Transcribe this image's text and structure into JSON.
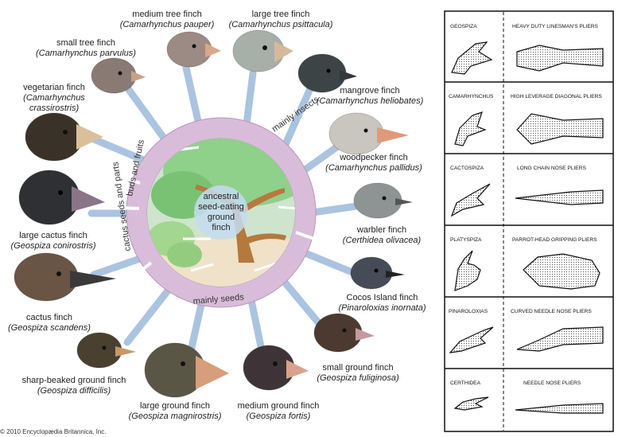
{
  "groups": {
    "insects": "mainly insects",
    "buds": "buds and fruits",
    "cactus": "cactus seeds and parts",
    "seeds": "mainly seeds"
  },
  "center": [
    "ancestral",
    "seed-eating",
    "ground",
    "finch"
  ],
  "finches": [
    {
      "name": "medium tree finch",
      "sci": "(Camarhynchus pauper)",
      "color": "#9c8a84"
    },
    {
      "name": "large tree finch",
      "sci": "(Camarhynchus psittacula)",
      "color": "#a6b0a8"
    },
    {
      "name": "small tree finch",
      "sci": "(Camarhynchus parvulus)",
      "color": "#8a7a74"
    },
    {
      "name": "mangrove finch",
      "sci": "(Camarhynchus heliobates)",
      "color": "#3c4446"
    },
    {
      "name": "vegetarian finch",
      "sci": "(Camarhynchus crassirostris)",
      "color": "#3a3228"
    },
    {
      "name": "woodpecker finch",
      "sci": "(Camarhynchus pallidus)",
      "color": "#c8c6be"
    },
    {
      "name": "warbler finch",
      "sci": "(Certhidea olivacea)",
      "color": "#8e9494"
    },
    {
      "name": "large cactus finch",
      "sci": "(Geospiza conirostris)",
      "color": "#2e3034"
    },
    {
      "name": "Cocos Island finch",
      "sci": "(Pinaroloxias inornata)",
      "color": "#454c58"
    },
    {
      "name": "cactus finch",
      "sci": "(Geospiza scandens)",
      "color": "#6a5444"
    },
    {
      "name": "small ground finch",
      "sci": "(Geospiza fuliginosa)",
      "color": "#4c3a30"
    },
    {
      "name": "sharp-beaked ground finch",
      "sci": "(Geospiza difficilis)",
      "color": "#4a4030"
    },
    {
      "name": "large ground finch",
      "sci": "(Geospiza magnirostris)",
      "color": "#5a5646"
    },
    {
      "name": "medium ground finch",
      "sci": "(Geospiza fortis)",
      "color": "#3e3438"
    }
  ],
  "copyright": "© 2010 Encyclopædia Britannica, Inc.",
  "pliers_table": [
    {
      "genus": "GEOSPIZA",
      "tool": "HEAVY DUTY LINESMAN'S PLIERS"
    },
    {
      "genus": "CAMARHYNCHUS",
      "tool": "HIGH LEVERAGE DIAGONAL PLIERS"
    },
    {
      "genus": "CACTOSPIZA",
      "tool": "LONG CHAIN NOSE PLIERS"
    },
    {
      "genus": "PLATYSPIZA",
      "tool": "PARROT-HEAD GRIPPING PLIERS"
    },
    {
      "genus": "PINAROLOXIAS",
      "tool": "CURVED NEEDLE NOSE PLIERS"
    },
    {
      "genus": "CERTHIDEA",
      "tool": "NEEDLE NOSE PLIERS"
    }
  ],
  "colors": {
    "ring": "#d9bcd9",
    "spoke": "#aac4e0",
    "foliage": "#8fd08a",
    "ground": "#efe2c8",
    "trunk": "#b5793e"
  }
}
